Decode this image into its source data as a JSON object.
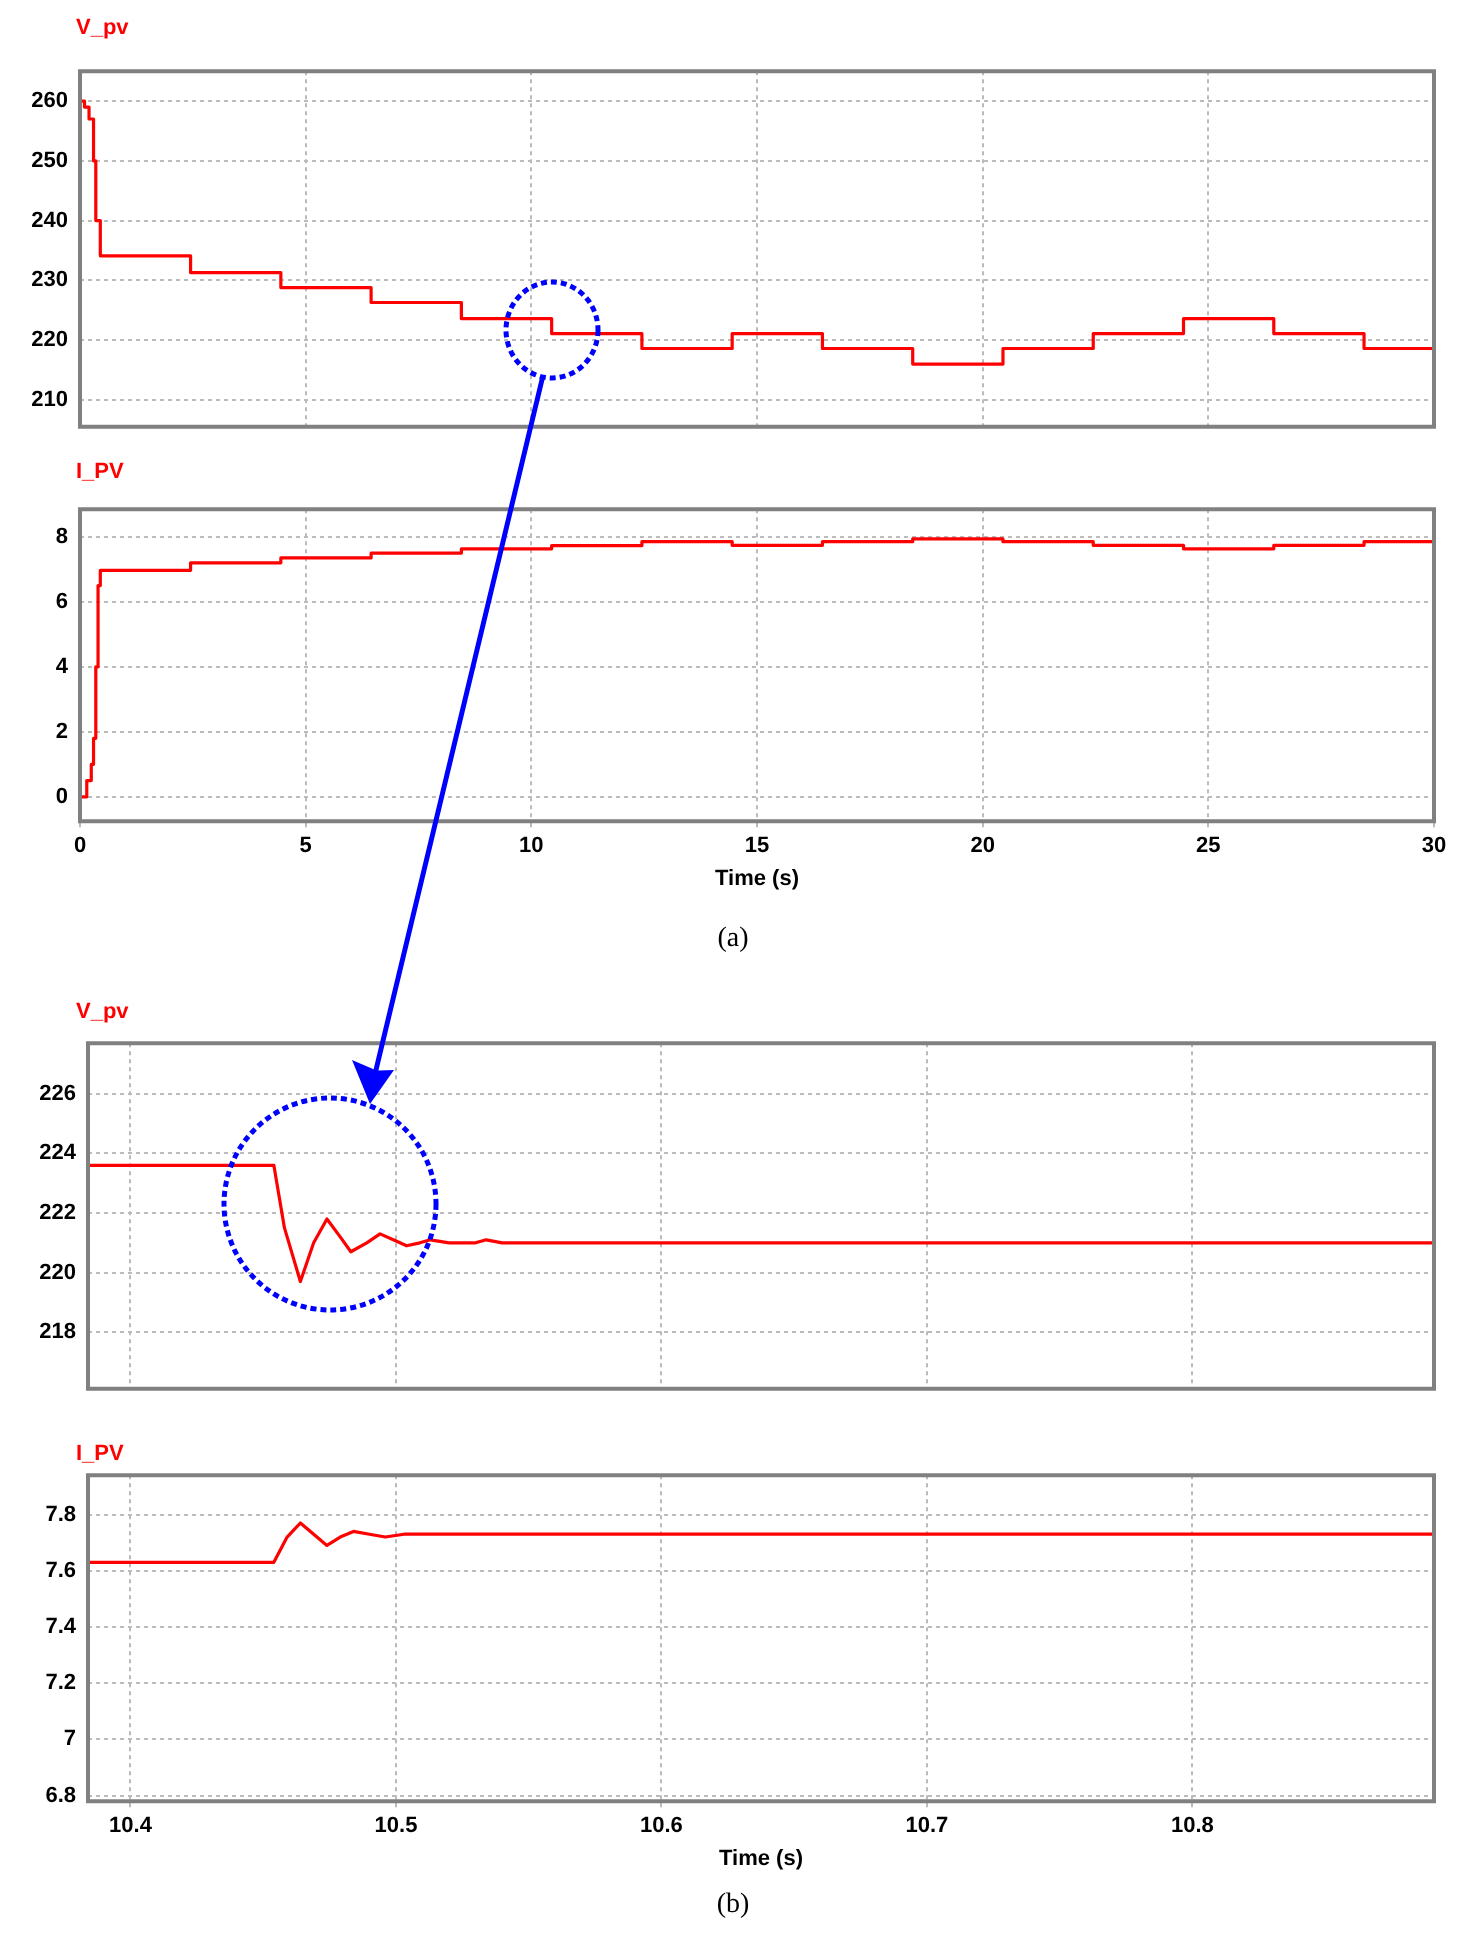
{
  "chart_data": [
    {
      "type": "step",
      "title": "V_pv",
      "x": [
        0,
        0.1,
        0.2,
        0.3,
        0.35,
        0.45,
        2.45,
        4.45,
        6.45,
        8.45,
        10.45,
        12.45,
        14.45,
        16.45,
        18.45,
        20.45,
        22.45,
        24.45,
        26.45,
        28.45,
        30
      ],
      "series": [
        {
          "color": "#ff0000",
          "values": [
            260,
            259,
            257,
            250,
            240,
            234.1,
            231.3,
            228.8,
            226.3,
            223.6,
            221.1,
            218.6,
            221.1,
            218.6,
            216,
            218.6,
            221.1,
            223.6,
            221.1,
            218.6,
            218.6
          ]
        }
      ],
      "xlim": [
        0,
        30
      ],
      "xticks": [
        0,
        5,
        10,
        15,
        20,
        25,
        30
      ],
      "ylim": [
        205.5,
        265
      ],
      "yticks": [
        210,
        220,
        230,
        240,
        250,
        260
      ],
      "grid": true,
      "tick_labels": "y"
    },
    {
      "type": "step",
      "title": "I_PV",
      "xlabel": "Time (s)",
      "annotations": [
        "(a)"
      ],
      "x": [
        0,
        0.15,
        0.25,
        0.3,
        0.35,
        0.4,
        0.45,
        2.45,
        4.45,
        6.45,
        8.45,
        10.45,
        12.45,
        14.45,
        16.45,
        18.45,
        20.45,
        22.45,
        24.45,
        26.45,
        28.45,
        30
      ],
      "series": [
        {
          "color": "#ff0000",
          "values": [
            0,
            0.5,
            1,
            1.8,
            4,
            6.5,
            6.97,
            7.2,
            7.35,
            7.5,
            7.63,
            7.73,
            7.85,
            7.74,
            7.85,
            7.94,
            7.85,
            7.74,
            7.63,
            7.74,
            7.85,
            7.85
          ]
        }
      ],
      "xlim": [
        0,
        30
      ],
      "xticks": [
        0,
        5,
        10,
        15,
        20,
        25,
        30
      ],
      "ylim": [
        -0.75,
        8.85
      ],
      "yticks": [
        0,
        2,
        4,
        6,
        8
      ],
      "grid": true
    },
    {
      "type": "line",
      "title": "V_pv",
      "x": [
        10.384,
        10.454,
        10.458,
        10.464,
        10.469,
        10.474,
        10.479,
        10.483,
        10.489,
        10.494,
        10.499,
        10.504,
        10.509,
        10.513,
        10.52,
        10.53,
        10.534,
        10.54,
        10.891
      ],
      "series": [
        {
          "color": "#ff0000",
          "values": [
            223.6,
            223.6,
            221.5,
            219.7,
            221,
            221.8,
            221.2,
            220.7,
            221,
            221.3,
            221.1,
            220.9,
            221,
            221.1,
            221,
            221,
            221.1,
            221,
            221
          ]
        }
      ],
      "xlim": [
        10.384,
        10.891
      ],
      "xticks": [
        10.4,
        10.5,
        10.6,
        10.7,
        10.8
      ],
      "ylim": [
        216.1,
        227.7
      ],
      "yticks": [
        218,
        220,
        222,
        224,
        226
      ],
      "grid": true,
      "tick_labels": "y"
    },
    {
      "type": "line",
      "title": "I_PV",
      "xlabel": "Time (s)",
      "annotations": [
        "(b)"
      ],
      "x": [
        10.384,
        10.454,
        10.459,
        10.464,
        10.469,
        10.474,
        10.479,
        10.484,
        10.49,
        10.496,
        10.503,
        10.51,
        10.52,
        10.53,
        10.891
      ],
      "series": [
        {
          "color": "#ff0000",
          "values": [
            7.63,
            7.63,
            7.72,
            7.77,
            7.73,
            7.69,
            7.72,
            7.74,
            7.73,
            7.72,
            7.73,
            7.73,
            7.73,
            7.73,
            7.73
          ]
        }
      ],
      "xlim": [
        10.384,
        10.891
      ],
      "xticks": [
        10.4,
        10.5,
        10.6,
        10.7,
        10.8
      ],
      "ylim": [
        6.78,
        7.94
      ],
      "yticks": [
        6.8,
        7,
        7.2,
        7.4,
        7.6,
        7.8
      ],
      "grid": true
    }
  ]
}
